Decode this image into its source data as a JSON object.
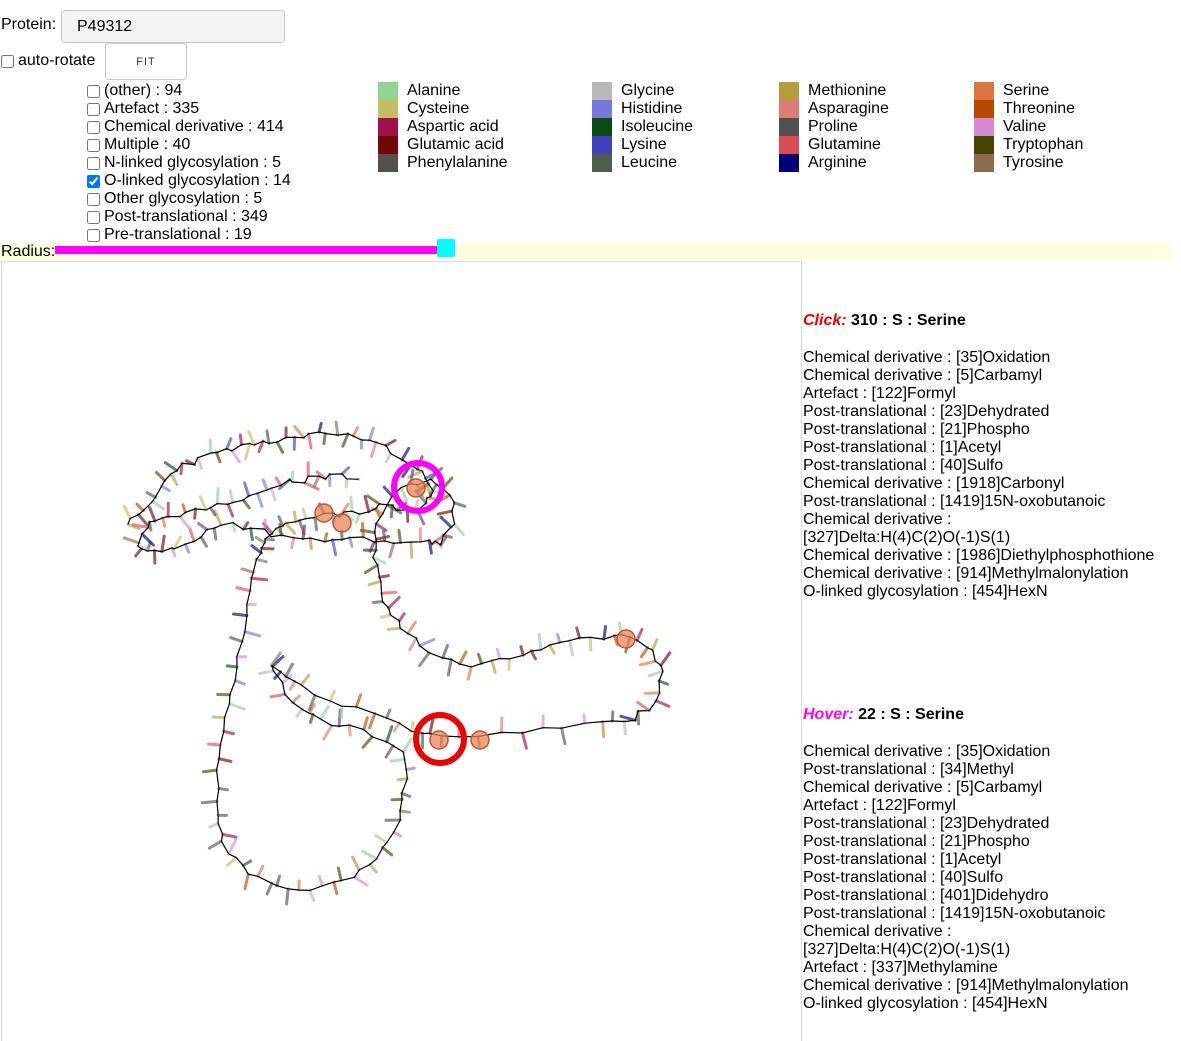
{
  "protein": {
    "label": "Protein:",
    "value": "P49312"
  },
  "autorotate": {
    "label": "auto-rotate",
    "checked": false
  },
  "fit_label": "FIT",
  "radius_label": "Radius:",
  "radius_value": 0.5,
  "modifications": [
    {
      "label": "(other) : 94",
      "checked": false
    },
    {
      "label": "Artefact : 335",
      "checked": false
    },
    {
      "label": "Chemical derivative : 414",
      "checked": false
    },
    {
      "label": "Multiple : 40",
      "checked": false
    },
    {
      "label": "N-linked glycosylation : 5",
      "checked": false
    },
    {
      "label": "O-linked glycosylation : 14",
      "checked": true
    },
    {
      "label": "Other glycosylation : 5",
      "checked": false
    },
    {
      "label": "Post-translational : 349",
      "checked": false
    },
    {
      "label": "Pre-translational : 19",
      "checked": false
    }
  ],
  "amino_acid_columns": [
    [
      {
        "name": "Alanine",
        "color": "#8fd48f"
      },
      {
        "name": "Cysteine",
        "color": "#c4bd65"
      },
      {
        "name": "Aspartic acid",
        "color": "#a0104a"
      },
      {
        "name": "Glutamic acid",
        "color": "#700808"
      },
      {
        "name": "Phenylalanine",
        "color": "#54504a"
      }
    ],
    [
      {
        "name": "Glycine",
        "color": "#b8b8b8"
      },
      {
        "name": "Histidine",
        "color": "#7878d8"
      },
      {
        "name": "Isoleucine",
        "color": "#0a4a16"
      },
      {
        "name": "Lysine",
        "color": "#4242b8"
      },
      {
        "name": "Leucine",
        "color": "#4c5e4c"
      }
    ],
    [
      {
        "name": "Methionine",
        "color": "#b89c3c"
      },
      {
        "name": "Asparagine",
        "color": "#dc7c72"
      },
      {
        "name": "Proline",
        "color": "#505050"
      },
      {
        "name": "Glutamine",
        "color": "#dc4a52"
      },
      {
        "name": "Arginine",
        "color": "#000078"
      }
    ],
    [
      {
        "name": "Serine",
        "color": "#dc7444"
      },
      {
        "name": "Threonine",
        "color": "#b84a00"
      },
      {
        "name": "Valine",
        "color": "#d48ad4"
      },
      {
        "name": "Tryptophan",
        "color": "#464200"
      },
      {
        "name": "Tyrosine",
        "color": "#8a6c4c"
      }
    ]
  ],
  "click_info": {
    "label": "Click:",
    "residue": "310 : S : Serine",
    "mods": [
      "Chemical derivative : [35]Oxidation",
      "Chemical derivative : [5]Carbamyl",
      "Artefact : [122]Formyl",
      "Post-translational : [23]Dehydrated",
      "Post-translational : [21]Phospho",
      "Post-translational : [1]Acetyl",
      "Post-translational : [40]Sulfo",
      "Chemical derivative : [1918]Carbonyl",
      "Post-translational : [1419]15N-oxobutanoic",
      "Chemical derivative :",
      "[327]Delta:H(4)C(2)O(-1)S(1)",
      "Chemical derivative : [1986]Diethylphosphothione",
      "Chemical derivative : [914]Methylmalonylation",
      "O-linked glycosylation : [454]HexN"
    ]
  },
  "hover_info": {
    "label": "Hover:",
    "residue": "22 : S : Serine",
    "mods": [
      "Chemical derivative : [35]Oxidation",
      "Post-translational : [34]Methyl",
      "Chemical derivative : [5]Carbamyl",
      "Artefact : [122]Formyl",
      "Post-translational : [23]Dehydrated",
      "Post-translational : [21]Phospho",
      "Post-translational : [1]Acetyl",
      "Post-translational : [40]Sulfo",
      "Post-translational : [401]Didehydro",
      "Post-translational : [1419]15N-oxobutanoic",
      "Chemical derivative :",
      "[327]Delta:H(4)C(2)O(-1)S(1)",
      "Artefact : [337]Methylamine",
      "Chemical derivative : [914]Methylmalonylation",
      "O-linked glycosylation : [454]HexN"
    ]
  },
  "viewer_colors": {
    "backbone": "#000000",
    "ptm": "#e8845a",
    "click_ring": "#ee0000",
    "hover_ring": "#ff00ff"
  }
}
